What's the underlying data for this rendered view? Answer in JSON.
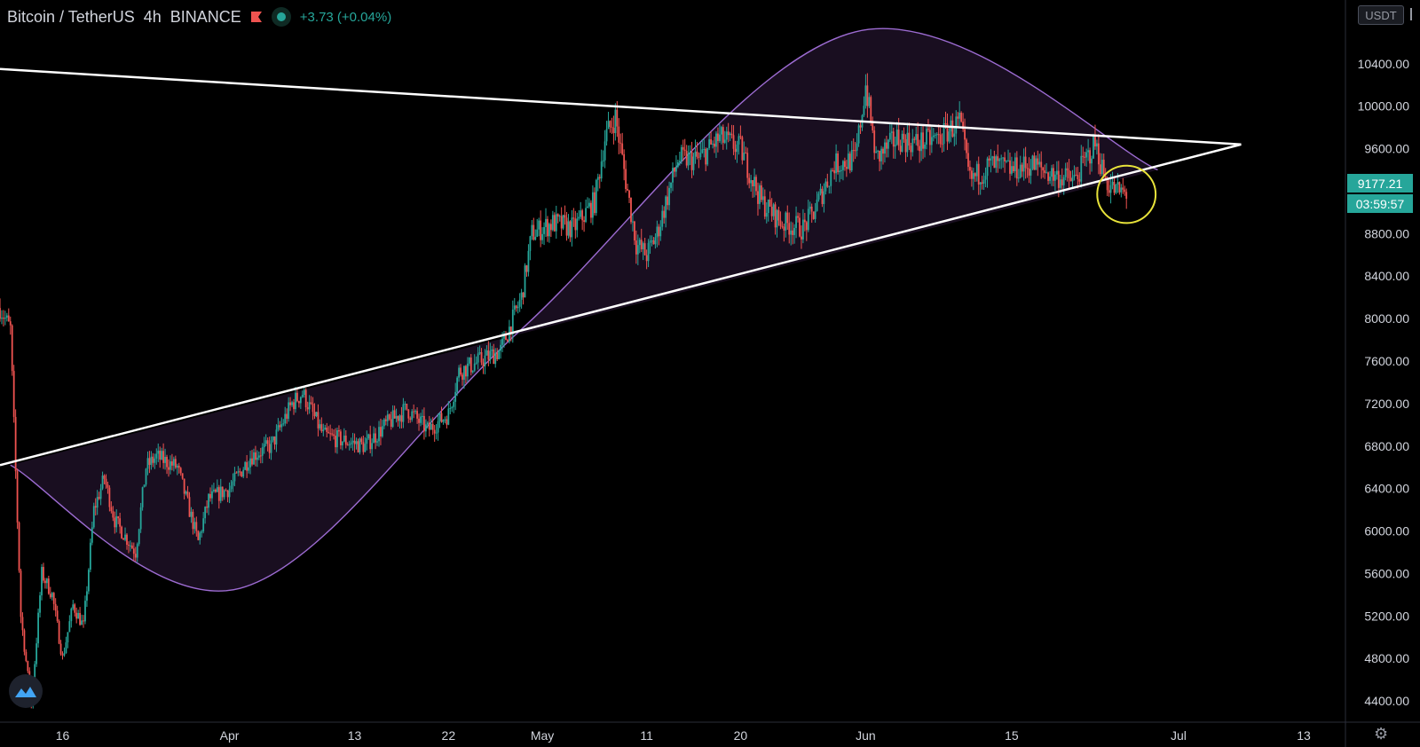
{
  "header": {
    "symbol": "Bitcoin / TetherUS",
    "interval": "4h",
    "exchange": "BINANCE",
    "change": "+3.73 (+0.04%)"
  },
  "unit_label": "USDT",
  "last_price_label": "9177.21",
  "countdown_label": "03:59:57",
  "colors": {
    "background": "#000000",
    "up": "#26a69a",
    "down": "#ef5350",
    "curve": "#9c6bd1",
    "curve_fill": "#1c0f24",
    "trendline": "#ffffff",
    "highlight": "#e8e33a"
  },
  "icons": [
    "red-flag-icon",
    "market-open-dot-icon",
    "tradingview-logo-icon",
    "settings-gear-icon"
  ],
  "chart_data": {
    "type": "candlestick",
    "title": "Bitcoin / TetherUS 4h BINANCE",
    "xlabel": "",
    "ylabel": "",
    "ylim": [
      4200,
      11000
    ],
    "y_ticks": [
      4400,
      4800,
      5200,
      5600,
      6000,
      6400,
      6800,
      7200,
      7600,
      8000,
      8400,
      8800,
      9600,
      10000,
      10400
    ],
    "y_tick_labels": [
      "4400.00",
      "4800.00",
      "5200.00",
      "5600.00",
      "6000.00",
      "6400.00",
      "6800.00",
      "7200.00",
      "7600.00",
      "8000.00",
      "8400.00",
      "8800.00",
      "9600.00",
      "10000.00",
      "10400.00"
    ],
    "x_range": [
      "2020-03-10",
      "2020-07-17"
    ],
    "x_ticks": [
      {
        "date": "2020-03-16",
        "label": "16"
      },
      {
        "date": "2020-04-01",
        "label": "Apr"
      },
      {
        "date": "2020-04-13",
        "label": "13"
      },
      {
        "date": "2020-04-22",
        "label": "22"
      },
      {
        "date": "2020-05-01",
        "label": "May"
      },
      {
        "date": "2020-05-11",
        "label": "11"
      },
      {
        "date": "2020-05-20",
        "label": "20"
      },
      {
        "date": "2020-06-01",
        "label": "Jun"
      },
      {
        "date": "2020-06-15",
        "label": "15"
      },
      {
        "date": "2020-07-01",
        "label": "Jul"
      },
      {
        "date": "2020-07-13",
        "label": "13"
      }
    ],
    "last_price": 9177.21,
    "price_path": [
      [
        "2020-03-10",
        8100
      ],
      [
        "2020-03-11",
        7900
      ],
      [
        "2020-03-12",
        5200
      ],
      [
        "2020-03-13",
        4350
      ],
      [
        "2020-03-14",
        5600
      ],
      [
        "2020-03-15",
        5400
      ],
      [
        "2020-03-16",
        4800
      ],
      [
        "2020-03-17",
        5300
      ],
      [
        "2020-03-18",
        5100
      ],
      [
        "2020-03-19",
        6200
      ],
      [
        "2020-03-20",
        6500
      ],
      [
        "2020-03-21",
        6100
      ],
      [
        "2020-03-23",
        5800
      ],
      [
        "2020-03-24",
        6600
      ],
      [
        "2020-03-25",
        6700
      ],
      [
        "2020-03-27",
        6600
      ],
      [
        "2020-03-29",
        5900
      ],
      [
        "2020-03-30",
        6300
      ],
      [
        "2020-04-01",
        6400
      ],
      [
        "2020-04-03",
        6700
      ],
      [
        "2020-04-05",
        6800
      ],
      [
        "2020-04-07",
        7200
      ],
      [
        "2020-04-08",
        7300
      ],
      [
        "2020-04-10",
        6900
      ],
      [
        "2020-04-12",
        6850
      ],
      [
        "2020-04-14",
        6800
      ],
      [
        "2020-04-16",
        7000
      ],
      [
        "2020-04-18",
        7150
      ],
      [
        "2020-04-20",
        6950
      ],
      [
        "2020-04-22",
        7100
      ],
      [
        "2020-04-23",
        7500
      ],
      [
        "2020-04-25",
        7600
      ],
      [
        "2020-04-27",
        7700
      ],
      [
        "2020-04-29",
        8200
      ],
      [
        "2020-04-30",
        8800
      ],
      [
        "2020-05-02",
        8900
      ],
      [
        "2020-05-04",
        8850
      ],
      [
        "2020-05-06",
        9100
      ],
      [
        "2020-05-07",
        9700
      ],
      [
        "2020-05-08",
        9900
      ],
      [
        "2020-05-10",
        8700
      ],
      [
        "2020-05-11",
        8600
      ],
      [
        "2020-05-12",
        8800
      ],
      [
        "2020-05-14",
        9500
      ],
      [
        "2020-05-16",
        9500
      ],
      [
        "2020-05-18",
        9700
      ],
      [
        "2020-05-20",
        9600
      ],
      [
        "2020-05-22",
        9100
      ],
      [
        "2020-05-24",
        8900
      ],
      [
        "2020-05-26",
        8850
      ],
      [
        "2020-05-27",
        9000
      ],
      [
        "2020-05-29",
        9450
      ],
      [
        "2020-05-31",
        9500
      ],
      [
        "2020-06-01",
        10200
      ],
      [
        "2020-06-02",
        9500
      ],
      [
        "2020-06-04",
        9700
      ],
      [
        "2020-06-06",
        9650
      ],
      [
        "2020-06-08",
        9700
      ],
      [
        "2020-06-10",
        9850
      ],
      [
        "2020-06-11",
        9300
      ],
      [
        "2020-06-13",
        9450
      ],
      [
        "2020-06-15",
        9400
      ],
      [
        "2020-06-17",
        9450
      ],
      [
        "2020-06-19",
        9350
      ],
      [
        "2020-06-21",
        9300
      ],
      [
        "2020-06-23",
        9650
      ],
      [
        "2020-06-24",
        9300
      ],
      [
        "2020-06-25",
        9200
      ],
      [
        "2020-06-26",
        9177
      ]
    ],
    "annotations": [
      {
        "type": "trendline",
        "name": "upper-resistance-line",
        "from": [
          "2020-03-10",
          10350
        ],
        "to": [
          "2020-07-07",
          9640
        ]
      },
      {
        "type": "trendline",
        "name": "lower-support-line",
        "from": [
          "2020-03-10",
          6620
        ],
        "to": [
          "2020-07-07",
          9640
        ]
      },
      {
        "type": "curve",
        "name": "purple-arc-curve",
        "points": [
          [
            "2020-03-11",
            6620
          ],
          [
            "2020-04-02",
            5460
          ],
          [
            "2020-04-29",
            7900
          ],
          [
            "2020-05-31",
            10700
          ],
          [
            "2020-06-29",
            9400
          ]
        ]
      },
      {
        "type": "ellipse",
        "name": "yellow-highlight-circle",
        "center": [
          "2020-06-26",
          9170
        ],
        "rx_days": 2.8,
        "ry_price": 270
      }
    ]
  }
}
